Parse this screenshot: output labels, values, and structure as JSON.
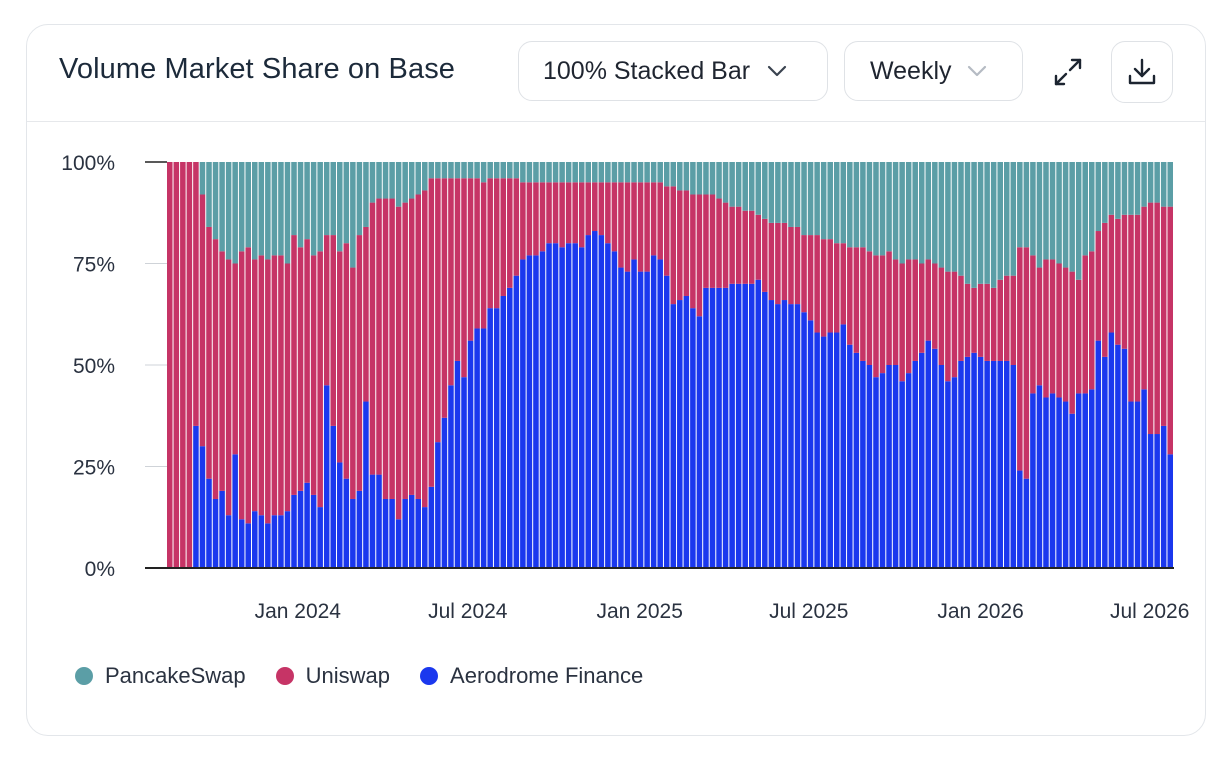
{
  "title": "Volume Market Share on Base",
  "controls": {
    "chart_type": "100% Stacked Bar",
    "interval": "Weekly"
  },
  "icons": {
    "chart_type_chevron": "chevron-down-icon",
    "interval_chevron": "chevron-down-icon",
    "expand": "expand-icon",
    "download": "download-icon"
  },
  "colors": {
    "PancakeSwap": "#5b9ea6",
    "Uniswap": "#c63466",
    "Aerodrome Finance": "#1b38ee"
  },
  "chart_data": {
    "type": "bar",
    "stacking": "percent",
    "y_ticks": [
      "0%",
      "25%",
      "50%",
      "75%",
      "100%"
    ],
    "ylim": [
      0,
      100
    ],
    "x_ticks": [
      "Jan 2024",
      "Jul 2024",
      "Jan 2025",
      "Jul 2025",
      "Jan 2026",
      "Jul 2026"
    ],
    "x_start": "2023-08-14",
    "legend_position": "bottom-left",
    "grid": true,
    "series": [
      {
        "name": "Aerodrome Finance",
        "values": [
          0,
          0,
          0,
          0,
          35,
          30,
          22,
          17,
          19,
          13,
          28,
          12,
          11,
          14,
          13,
          11,
          13,
          13,
          14,
          18,
          19,
          21,
          18,
          15,
          45,
          35,
          26,
          22,
          17,
          19,
          41,
          23,
          23,
          17,
          17,
          12,
          17,
          18,
          17,
          15,
          20,
          31,
          37,
          45,
          51,
          47,
          56,
          59,
          59,
          64,
          64,
          67,
          69,
          72,
          76,
          77,
          77,
          78,
          80,
          80,
          79,
          80,
          80,
          79,
          82,
          83,
          82,
          80,
          78,
          74,
          73,
          76,
          73,
          73,
          77,
          76,
          72,
          65,
          66,
          67,
          64,
          62,
          69,
          69,
          69,
          69,
          70,
          70,
          70,
          70,
          71,
          68,
          66,
          65,
          66,
          65,
          65,
          63,
          61,
          58,
          57,
          58,
          58,
          60,
          55,
          53,
          51,
          50,
          47,
          48,
          50,
          50,
          46,
          48,
          51,
          53,
          56,
          54,
          50,
          46,
          47,
          51,
          52,
          53,
          52,
          51,
          51,
          51,
          51,
          50,
          24,
          22,
          43,
          45,
          42,
          43,
          42,
          41,
          38,
          43,
          43,
          44,
          56,
          52,
          58,
          55,
          54,
          41,
          41,
          44,
          33,
          33,
          35,
          28
        ]
      },
      {
        "name": "Uniswap",
        "values": [
          100,
          100,
          100,
          100,
          65,
          62,
          62,
          64,
          59,
          63,
          47,
          66,
          68,
          62,
          64,
          65,
          64,
          64,
          61,
          64,
          60,
          60,
          59,
          63,
          37,
          47,
          52,
          58,
          57,
          63,
          43,
          67,
          68,
          74,
          74,
          77,
          73,
          73,
          75,
          78,
          76,
          65,
          59,
          51,
          45,
          49,
          40,
          37,
          36,
          32,
          32,
          29,
          27,
          24,
          19,
          18,
          18,
          17,
          15,
          15,
          16,
          15,
          15,
          16,
          13,
          12,
          13,
          15,
          17,
          21,
          22,
          19,
          22,
          22,
          18,
          19,
          22,
          29,
          27,
          26,
          28,
          30,
          23,
          23,
          22,
          21,
          19,
          19,
          18,
          18,
          16,
          18,
          19,
          20,
          19,
          19,
          19,
          19,
          21,
          24,
          24,
          23,
          22,
          20,
          24,
          26,
          28,
          28,
          30,
          29,
          28,
          26,
          29,
          28,
          25,
          22,
          20,
          21,
          24,
          27,
          26,
          21,
          18,
          16,
          18,
          19,
          18,
          20,
          21,
          22,
          55,
          57,
          34,
          29,
          34,
          33,
          33,
          33,
          35,
          28,
          34,
          34,
          27,
          33,
          29,
          31,
          33,
          46,
          46,
          45,
          57,
          57,
          54,
          61
        ]
      },
      {
        "name": "PancakeSwap",
        "values": [
          0,
          0,
          0,
          0,
          0,
          8,
          16,
          19,
          22,
          24,
          25,
          22,
          21,
          24,
          23,
          24,
          23,
          23,
          25,
          18,
          21,
          19,
          23,
          22,
          18,
          18,
          22,
          20,
          26,
          18,
          16,
          10,
          9,
          9,
          9,
          11,
          10,
          9,
          8,
          7,
          4,
          4,
          4,
          4,
          4,
          4,
          4,
          4,
          5,
          4,
          4,
          4,
          4,
          4,
          5,
          5,
          5,
          5,
          5,
          5,
          5,
          5,
          5,
          5,
          5,
          5,
          5,
          5,
          5,
          5,
          5,
          5,
          5,
          5,
          5,
          5,
          6,
          6,
          7,
          7,
          8,
          8,
          8,
          8,
          9,
          10,
          11,
          11,
          12,
          12,
          13,
          14,
          15,
          15,
          15,
          16,
          16,
          18,
          18,
          18,
          19,
          19,
          20,
          20,
          21,
          21,
          21,
          22,
          23,
          23,
          22,
          24,
          25,
          24,
          24,
          25,
          24,
          25,
          26,
          27,
          27,
          28,
          30,
          31,
          30,
          30,
          31,
          29,
          28,
          28,
          21,
          21,
          23,
          26,
          24,
          24,
          25,
          26,
          27,
          29,
          23,
          22,
          17,
          15,
          13,
          14,
          13,
          13,
          13,
          11,
          10,
          10,
          11,
          11
        ]
      }
    ]
  }
}
